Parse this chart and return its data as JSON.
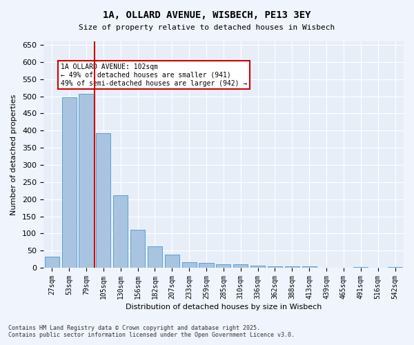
{
  "title1": "1A, OLLARD AVENUE, WISBECH, PE13 3EY",
  "title2": "Size of property relative to detached houses in Wisbech",
  "xlabel": "Distribution of detached houses by size in Wisbech",
  "ylabel": "Number of detached properties",
  "categories": [
    "27sqm",
    "53sqm",
    "79sqm",
    "105sqm",
    "130sqm",
    "156sqm",
    "182sqm",
    "207sqm",
    "233sqm",
    "259sqm",
    "285sqm",
    "310sqm",
    "336sqm",
    "362sqm",
    "388sqm",
    "413sqm",
    "439sqm",
    "465sqm",
    "491sqm",
    "516sqm",
    "542sqm"
  ],
  "values": [
    32,
    497,
    507,
    393,
    212,
    110,
    62,
    38,
    17,
    14,
    10,
    10,
    7,
    4,
    4,
    5,
    1,
    1,
    3,
    1,
    3
  ],
  "bar_color": "#a8c4e0",
  "bar_edge_color": "#5a9fd4",
  "bg_color": "#e8eef8",
  "grid_color": "#ffffff",
  "vline_x": 3,
  "vline_color": "#cc0000",
  "annotation_text": "1A OLLARD AVENUE: 102sqm\n← 49% of detached houses are smaller (941)\n49% of semi-detached houses are larger (942) →",
  "annotation_box_color": "#cc0000",
  "footer1": "Contains HM Land Registry data © Crown copyright and database right 2025.",
  "footer2": "Contains public sector information licensed under the Open Government Licence v3.0.",
  "ylim": [
    0,
    660
  ],
  "yticks": [
    0,
    50,
    100,
    150,
    200,
    250,
    300,
    350,
    400,
    450,
    500,
    550,
    600,
    650
  ]
}
